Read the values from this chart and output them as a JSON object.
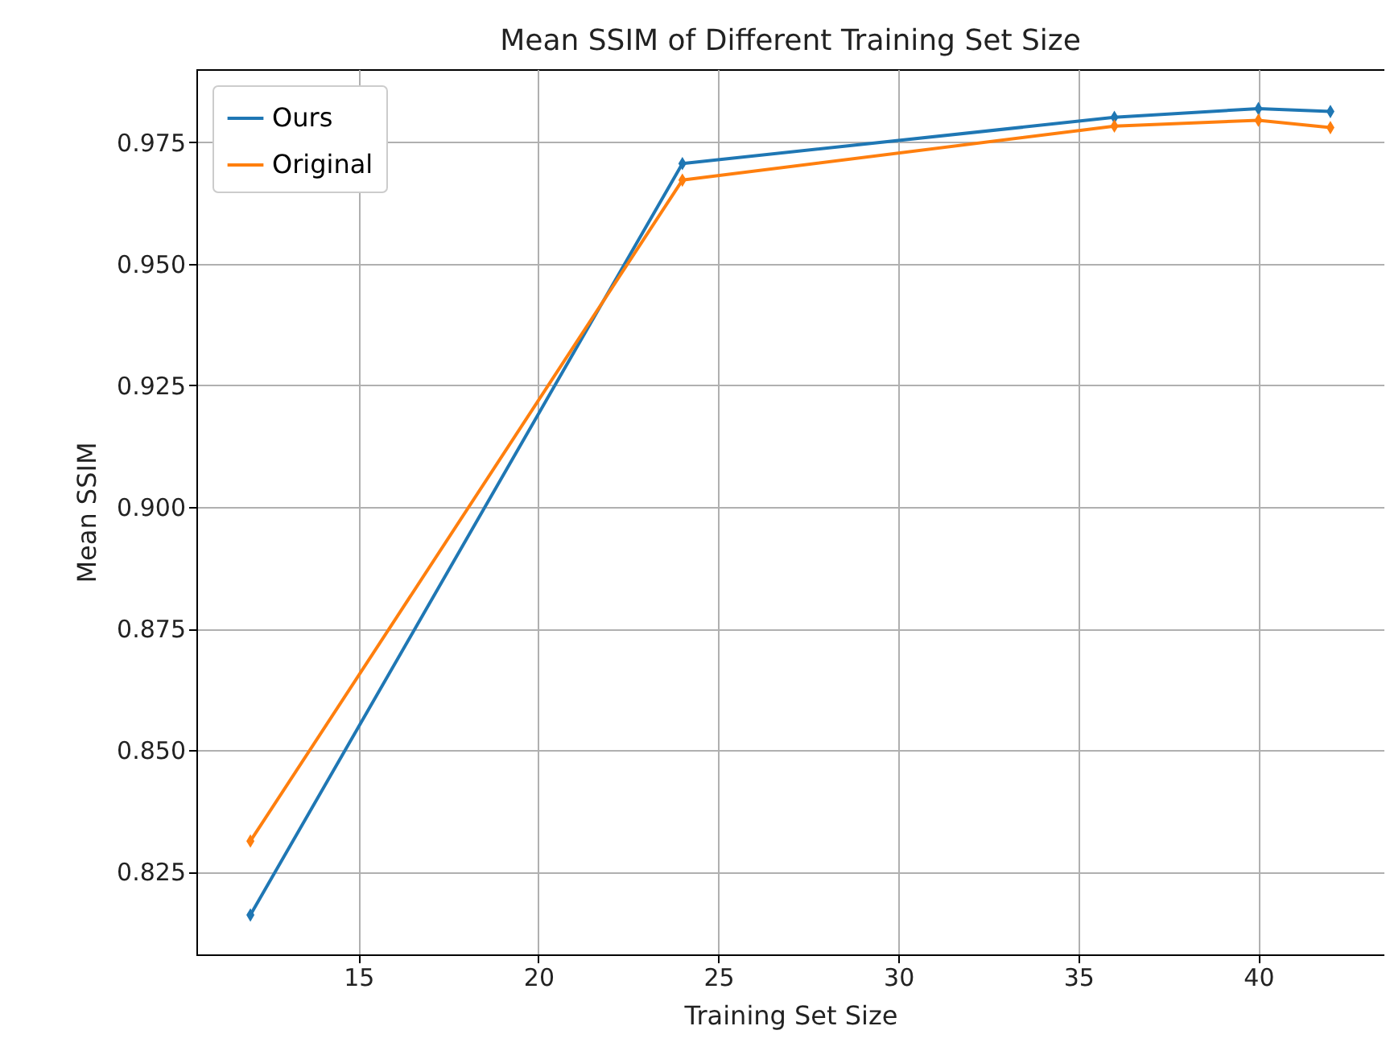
{
  "chart_data": {
    "type": "line",
    "title": "Mean SSIM of Different Training Set Size",
    "xlabel": "Training Set Size",
    "ylabel": "Mean SSIM",
    "x": [
      12,
      24,
      36,
      40,
      42
    ],
    "series": [
      {
        "name": "Ours",
        "color": "#1f77b4",
        "values": [
          0.8161,
          0.9706,
          0.9801,
          0.9819,
          0.9813
        ]
      },
      {
        "name": "Original",
        "color": "#ff7f0e",
        "values": [
          0.8313,
          0.9672,
          0.9783,
          0.9795,
          0.978
        ]
      }
    ],
    "xlim": [
      10.5,
      43.5
    ],
    "xticks": [
      15,
      20,
      25,
      30,
      35,
      40
    ],
    "ylim": [
      0.808,
      0.99
    ],
    "yticks": [
      0.825,
      {
        "value": 0.85,
        "label": "0.850"
      },
      0.875,
      {
        "value": 0.9,
        "label": "0.900"
      },
      0.925,
      {
        "value": 0.95,
        "label": "0.950"
      },
      0.975
    ],
    "grid": true,
    "legend": "top left",
    "marker": "diamond",
    "line_style": "solid"
  }
}
